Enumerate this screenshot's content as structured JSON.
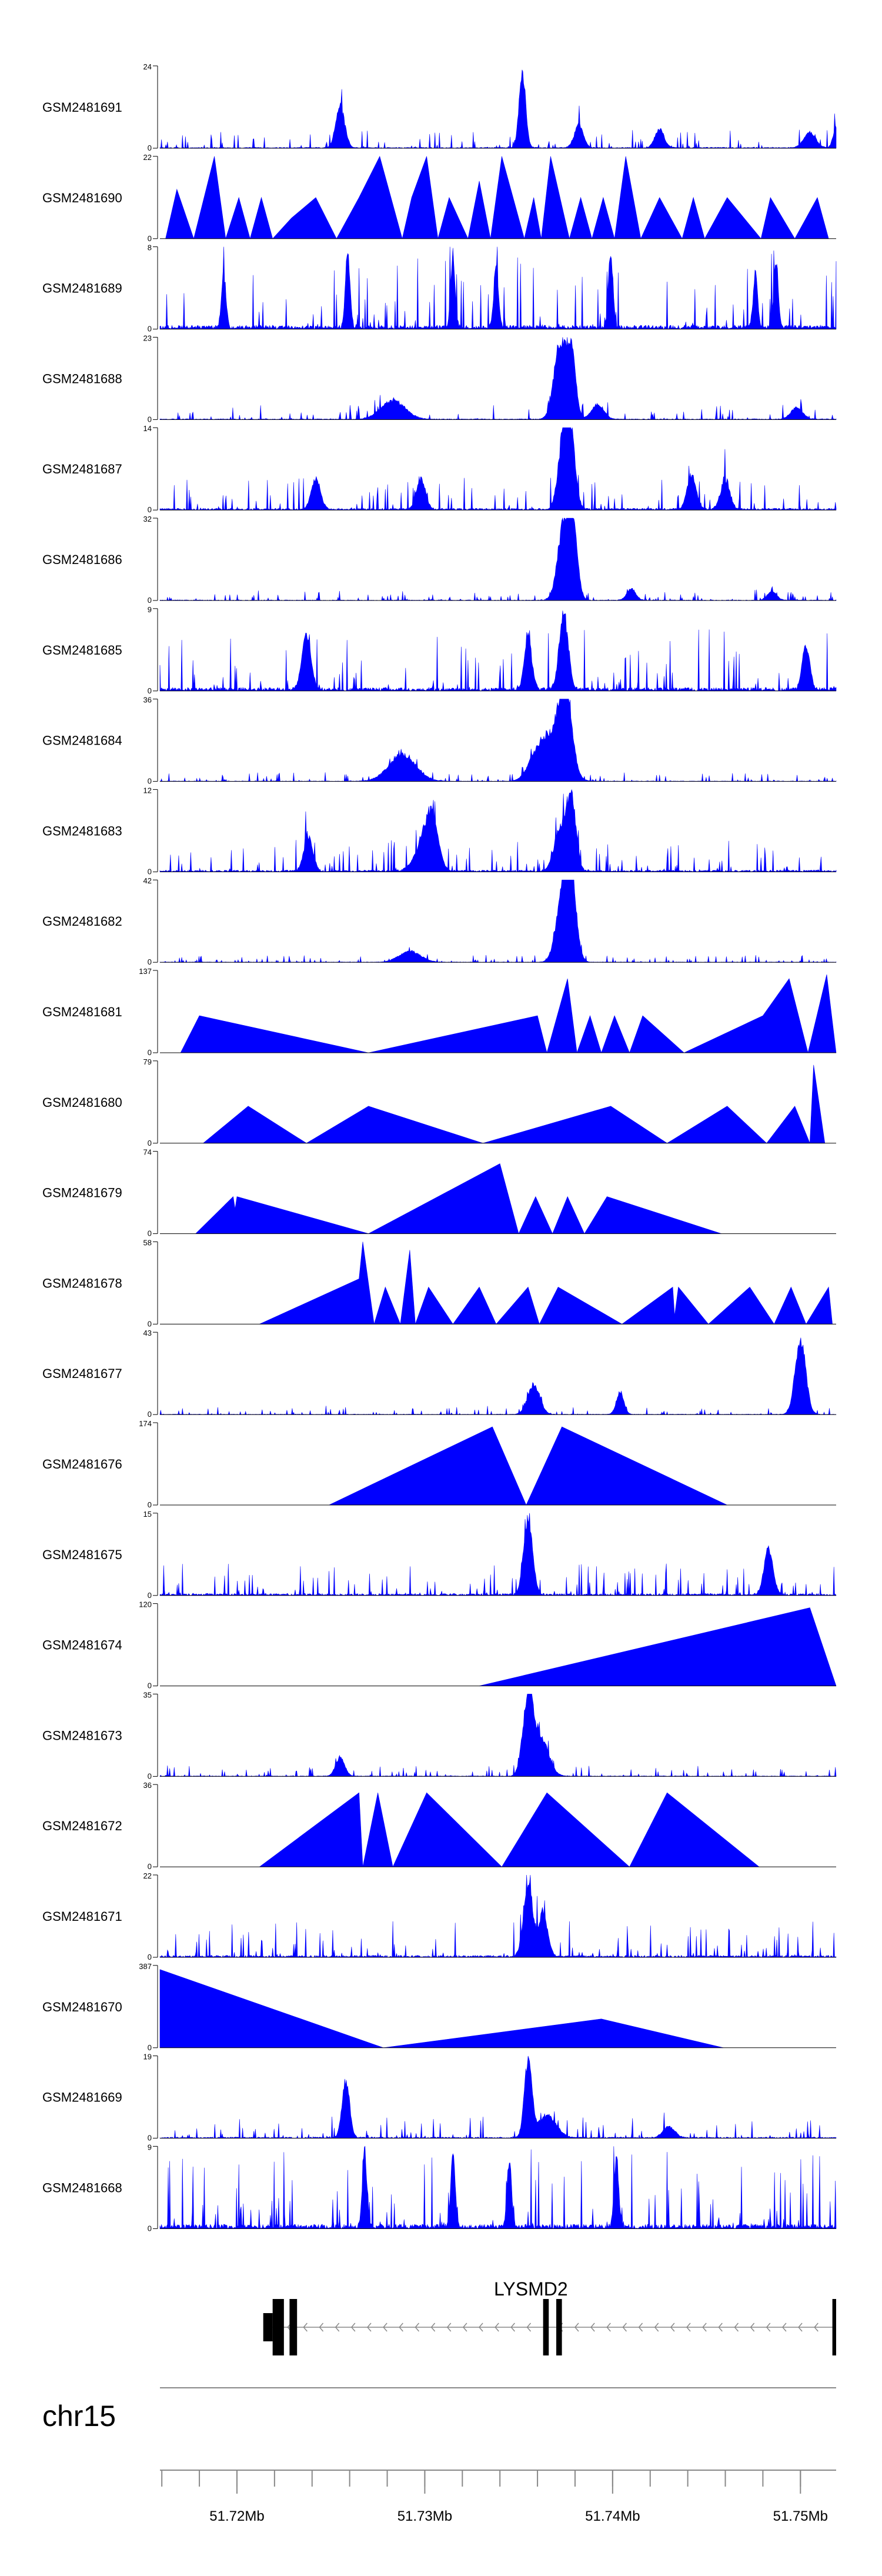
{
  "colors": {
    "track": "#0000ff",
    "axis": "#000000",
    "intron": "#888888"
  },
  "chart_data": {
    "type": "area",
    "chromosome": "chr15",
    "x_range": [
      51.7159,
      51.7519
    ],
    "x_unit": "Mb",
    "x_ticks": [
      {
        "value": 51.72,
        "label": "51.72Mb"
      },
      {
        "value": 51.73,
        "label": "51.73Mb"
      },
      {
        "value": 51.74,
        "label": "51.74Mb"
      },
      {
        "value": 51.75,
        "label": "51.75Mb"
      }
    ],
    "gene": {
      "name": "LYSMD2",
      "strand": "-",
      "start": 51.7219,
      "end": 51.7519,
      "exons": [
        [
          51.7219,
          51.7225
        ],
        [
          51.7228,
          51.7232
        ],
        [
          51.7363,
          51.7366
        ],
        [
          51.737,
          51.7373
        ],
        [
          51.7517,
          51.7519
        ]
      ],
      "utrs": [
        [
          51.7214,
          51.7219
        ]
      ]
    },
    "tracks": [
      {
        "name": "GSM2481691",
        "ymax": 24,
        "style": "dense",
        "seed": 1,
        "peaks": [
          [
            51.7255,
            0.55,
            0.3
          ],
          [
            51.7352,
            1.0,
            0.22
          ],
          [
            51.7382,
            0.3,
            0.3
          ],
          [
            51.7425,
            0.25,
            0.3
          ],
          [
            51.7505,
            0.2,
            0.4
          ],
          [
            51.7519,
            0.28,
            0.2
          ]
        ]
      },
      {
        "name": "GSM2481690",
        "ymax": 22,
        "style": "sparse",
        "seed": 2,
        "points": [
          [
            51.7162,
            0
          ],
          [
            51.7168,
            0.6
          ],
          [
            51.7177,
            0
          ],
          [
            51.7188,
            1.0
          ],
          [
            51.7194,
            0
          ],
          [
            51.7201,
            0.5
          ],
          [
            51.7207,
            0
          ],
          [
            51.7213,
            0.5
          ],
          [
            51.7219,
            0
          ],
          [
            51.7229,
            0.25
          ],
          [
            51.7242,
            0.5
          ],
          [
            51.7253,
            0
          ],
          [
            51.7265,
            0.5
          ],
          [
            51.7276,
            1.0
          ],
          [
            51.7288,
            0
          ],
          [
            51.7293,
            0.5
          ],
          [
            51.7301,
            1.0
          ],
          [
            51.7307,
            0
          ],
          [
            51.7313,
            0.5
          ],
          [
            51.7323,
            0
          ],
          [
            51.7329,
            0.7
          ],
          [
            51.7335,
            0
          ],
          [
            51.7341,
            1.0
          ],
          [
            51.7353,
            0
          ],
          [
            51.7358,
            0.5
          ],
          [
            51.7362,
            0
          ],
          [
            51.7367,
            1.0
          ],
          [
            51.7377,
            0
          ],
          [
            51.7383,
            0.5
          ],
          [
            51.7389,
            0
          ],
          [
            51.7395,
            0.5
          ],
          [
            51.7401,
            0
          ],
          [
            51.7407,
            1.0
          ],
          [
            51.7415,
            0
          ],
          [
            51.7425,
            0.5
          ],
          [
            51.7437,
            0
          ],
          [
            51.7443,
            0.5
          ],
          [
            51.7449,
            0
          ],
          [
            51.7461,
            0.5
          ],
          [
            51.7479,
            0
          ],
          [
            51.7484,
            0.5
          ],
          [
            51.7497,
            0
          ],
          [
            51.7509,
            0.5
          ],
          [
            51.7515,
            0
          ]
        ]
      },
      {
        "name": "GSM2481689",
        "ymax": 8,
        "style": "dense",
        "seed": 3,
        "noise": 0.4,
        "peaks": [
          [
            51.7193,
            0.7,
            0.15
          ],
          [
            51.7259,
            1.0,
            0.15
          ],
          [
            51.7315,
            0.9,
            0.15
          ],
          [
            51.7338,
            0.8,
            0.15
          ],
          [
            51.7399,
            1.0,
            0.15
          ],
          [
            51.7476,
            0.7,
            0.15
          ],
          [
            51.7487,
            0.9,
            0.15
          ]
        ]
      },
      {
        "name": "GSM2481688",
        "ymax": 23,
        "style": "dense",
        "seed": 4,
        "noise": 0.08,
        "peaks": [
          [
            51.7283,
            0.25,
            0.8
          ],
          [
            51.7372,
            1.0,
            0.4
          ],
          [
            51.7378,
            0.85,
            0.3
          ],
          [
            51.7392,
            0.2,
            0.4
          ],
          [
            51.7498,
            0.15,
            0.4
          ]
        ]
      },
      {
        "name": "GSM2481687",
        "ymax": 14,
        "style": "dense",
        "seed": 5,
        "noise": 0.18,
        "peaks": [
          [
            51.7374,
            1.0,
            0.35
          ],
          [
            51.7378,
            0.8,
            0.3
          ],
          [
            51.7298,
            0.4,
            0.3
          ],
          [
            51.7242,
            0.4,
            0.3
          ],
          [
            51.7442,
            0.45,
            0.3
          ],
          [
            51.746,
            0.4,
            0.3
          ]
        ]
      },
      {
        "name": "GSM2481686",
        "ymax": 32,
        "style": "dense",
        "seed": 6,
        "noise": 0.06,
        "peaks": [
          [
            51.7374,
            1.0,
            0.4
          ],
          [
            51.7379,
            0.85,
            0.3
          ],
          [
            51.741,
            0.15,
            0.3
          ],
          [
            51.7485,
            0.12,
            0.3
          ]
        ]
      },
      {
        "name": "GSM2481685",
        "ymax": 9,
        "style": "dense",
        "seed": 7,
        "noise": 0.35,
        "peaks": [
          [
            51.7374,
            1.0,
            0.3
          ],
          [
            51.7237,
            0.7,
            0.3
          ],
          [
            51.7355,
            0.7,
            0.25
          ],
          [
            51.7503,
            0.6,
            0.25
          ]
        ]
      },
      {
        "name": "GSM2481684",
        "ymax": 36,
        "style": "dense",
        "seed": 8,
        "noise": 0.05,
        "peaks": [
          [
            51.7288,
            0.35,
            0.9
          ],
          [
            51.7375,
            1.0,
            0.4
          ],
          [
            51.737,
            0.6,
            0.7
          ],
          [
            51.736,
            0.35,
            0.6
          ]
        ]
      },
      {
        "name": "GSM2481683",
        "ymax": 12,
        "style": "dense",
        "seed": 9,
        "noise": 0.18,
        "peaks": [
          [
            51.7378,
            1.0,
            0.3
          ],
          [
            51.7372,
            0.55,
            0.4
          ],
          [
            51.7304,
            0.5,
            0.4
          ],
          [
            51.7238,
            0.45,
            0.3
          ],
          [
            51.73,
            0.4,
            0.6
          ]
        ]
      },
      {
        "name": "GSM2481682",
        "ymax": 42,
        "style": "dense",
        "seed": 10,
        "noise": 0.04,
        "peaks": [
          [
            51.7374,
            1.0,
            0.45
          ],
          [
            51.7378,
            0.8,
            0.35
          ],
          [
            51.7292,
            0.15,
            0.7
          ]
        ]
      },
      {
        "name": "GSM2481681",
        "ymax": 137,
        "style": "sparse",
        "seed": 11,
        "points": [
          [
            51.717,
            0
          ],
          [
            51.718,
            0.45
          ],
          [
            51.727,
            0
          ],
          [
            51.736,
            0.45
          ],
          [
            51.7365,
            0
          ],
          [
            51.7376,
            0.9
          ],
          [
            51.7381,
            0
          ],
          [
            51.7388,
            0.45
          ],
          [
            51.7394,
            0
          ],
          [
            51.7401,
            0.45
          ],
          [
            51.7409,
            0
          ],
          [
            51.7416,
            0.45
          ],
          [
            51.7438,
            0
          ],
          [
            51.748,
            0.45
          ],
          [
            51.7494,
            0.9
          ],
          [
            51.7504,
            0
          ],
          [
            51.7514,
            0.95
          ],
          [
            51.7519,
            0
          ]
        ]
      },
      {
        "name": "GSM2481680",
        "ymax": 79,
        "style": "sparse",
        "seed": 12,
        "points": [
          [
            51.7182,
            0
          ],
          [
            51.7206,
            0.45
          ],
          [
            51.7237,
            0
          ],
          [
            51.727,
            0.45
          ],
          [
            51.7331,
            0
          ],
          [
            51.7399,
            0.45
          ],
          [
            51.7429,
            0
          ],
          [
            51.7461,
            0.45
          ],
          [
            51.7482,
            0
          ],
          [
            51.7497,
            0.45
          ],
          [
            51.7505,
            0
          ],
          [
            51.7507,
            0.95
          ],
          [
            51.7513,
            0
          ]
        ]
      },
      {
        "name": "GSM2481679",
        "ymax": 74,
        "style": "sparse",
        "seed": 13,
        "points": [
          [
            51.7178,
            0
          ],
          [
            51.7198,
            0.45
          ],
          [
            51.7199,
            0.3
          ],
          [
            51.72,
            0.45
          ],
          [
            51.727,
            0
          ],
          [
            51.734,
            0.85
          ],
          [
            51.735,
            0
          ],
          [
            51.7359,
            0.45
          ],
          [
            51.7368,
            0
          ],
          [
            51.7376,
            0.45
          ],
          [
            51.7385,
            0
          ],
          [
            51.7397,
            0.45
          ],
          [
            51.7458,
            0
          ]
        ]
      },
      {
        "name": "GSM2481678",
        "ymax": 58,
        "style": "sparse",
        "seed": 14,
        "points": [
          [
            51.7212,
            0
          ],
          [
            51.7265,
            0.55
          ],
          [
            51.7267,
            1.0
          ],
          [
            51.7273,
            0
          ],
          [
            51.7279,
            0.45
          ],
          [
            51.7287,
            0
          ],
          [
            51.7292,
            0.9
          ],
          [
            51.7295,
            0
          ],
          [
            51.7302,
            0.45
          ],
          [
            51.7315,
            0
          ],
          [
            51.7329,
            0.45
          ],
          [
            51.7338,
            0
          ],
          [
            51.7355,
            0.45
          ],
          [
            51.7361,
            0
          ],
          [
            51.7371,
            0.45
          ],
          [
            51.7405,
            0
          ],
          [
            51.7432,
            0.45
          ],
          [
            51.7433,
            0.1
          ],
          [
            51.7435,
            0.45
          ],
          [
            51.7451,
            0
          ],
          [
            51.7473,
            0.45
          ],
          [
            51.7486,
            0
          ],
          [
            51.7495,
            0.45
          ],
          [
            51.7503,
            0
          ],
          [
            51.7515,
            0.45
          ],
          [
            51.7517,
            0
          ]
        ]
      },
      {
        "name": "GSM2481677",
        "ymax": 43,
        "style": "dense",
        "seed": 15,
        "noise": 0.05,
        "peaks": [
          [
            51.75,
            1.0,
            0.35
          ],
          [
            51.7358,
            0.4,
            0.4
          ],
          [
            51.7404,
            0.3,
            0.25
          ]
        ]
      },
      {
        "name": "GSM2481676",
        "ymax": 174,
        "style": "sparse",
        "seed": 16,
        "points": [
          [
            51.7249,
            0
          ],
          [
            51.7336,
            0.95
          ],
          [
            51.7354,
            0
          ],
          [
            51.7373,
            0.95
          ],
          [
            51.7461,
            0
          ]
        ]
      },
      {
        "name": "GSM2481675",
        "ymax": 15,
        "style": "dense",
        "seed": 17,
        "noise": 0.2,
        "peaks": [
          [
            51.7355,
            1.0,
            0.3
          ],
          [
            51.7483,
            0.6,
            0.3
          ]
        ]
      },
      {
        "name": "GSM2481674",
        "ymax": 120,
        "style": "sparse",
        "seed": 18,
        "points": [
          [
            51.7329,
            0
          ],
          [
            51.7505,
            0.95
          ],
          [
            51.7519,
            0
          ]
        ]
      },
      {
        "name": "GSM2481673",
        "ymax": 35,
        "style": "dense",
        "seed": 19,
        "noise": 0.06,
        "peaks": [
          [
            51.7355,
            1.0,
            0.35
          ],
          [
            51.7362,
            0.5,
            0.5
          ],
          [
            51.7255,
            0.25,
            0.3
          ]
        ]
      },
      {
        "name": "GSM2481672",
        "ymax": 36,
        "style": "sparse",
        "seed": 20,
        "points": [
          [
            51.7212,
            0
          ],
          [
            51.7265,
            0.9
          ],
          [
            51.7267,
            0
          ],
          [
            51.7275,
            0.9
          ],
          [
            51.7283,
            0
          ],
          [
            51.7301,
            0.9
          ],
          [
            51.7341,
            0
          ],
          [
            51.7365,
            0.9
          ],
          [
            51.7409,
            0
          ],
          [
            51.7429,
            0.9
          ],
          [
            51.7478,
            0
          ]
        ]
      },
      {
        "name": "GSM2481671",
        "ymax": 22,
        "style": "dense",
        "seed": 21,
        "noise": 0.2,
        "peaks": [
          [
            51.7355,
            1.0,
            0.3
          ],
          [
            51.7363,
            0.6,
            0.3
          ]
        ]
      },
      {
        "name": "GSM2481670",
        "ymax": 387,
        "style": "sparse",
        "seed": 22,
        "points": [
          [
            51.7159,
            0
          ],
          [
            51.7159,
            0.95
          ],
          [
            51.7278,
            0
          ],
          [
            51.7394,
            0.35
          ],
          [
            51.7459,
            0
          ]
        ]
      },
      {
        "name": "GSM2481669",
        "ymax": 19,
        "style": "dense",
        "seed": 23,
        "noise": 0.12,
        "peaks": [
          [
            51.7258,
            0.75,
            0.25
          ],
          [
            51.7355,
            1.0,
            0.25
          ],
          [
            51.7365,
            0.3,
            0.6
          ],
          [
            51.743,
            0.15,
            0.4
          ]
        ]
      },
      {
        "name": "GSM2481668",
        "ymax": 9,
        "style": "dense",
        "seed": 24,
        "noise": 0.45,
        "peaks": [
          [
            51.7268,
            1.0,
            0.15
          ],
          [
            51.7315,
            0.95,
            0.15
          ],
          [
            51.7345,
            0.9,
            0.15
          ],
          [
            51.7402,
            0.9,
            0.15
          ]
        ]
      }
    ]
  }
}
